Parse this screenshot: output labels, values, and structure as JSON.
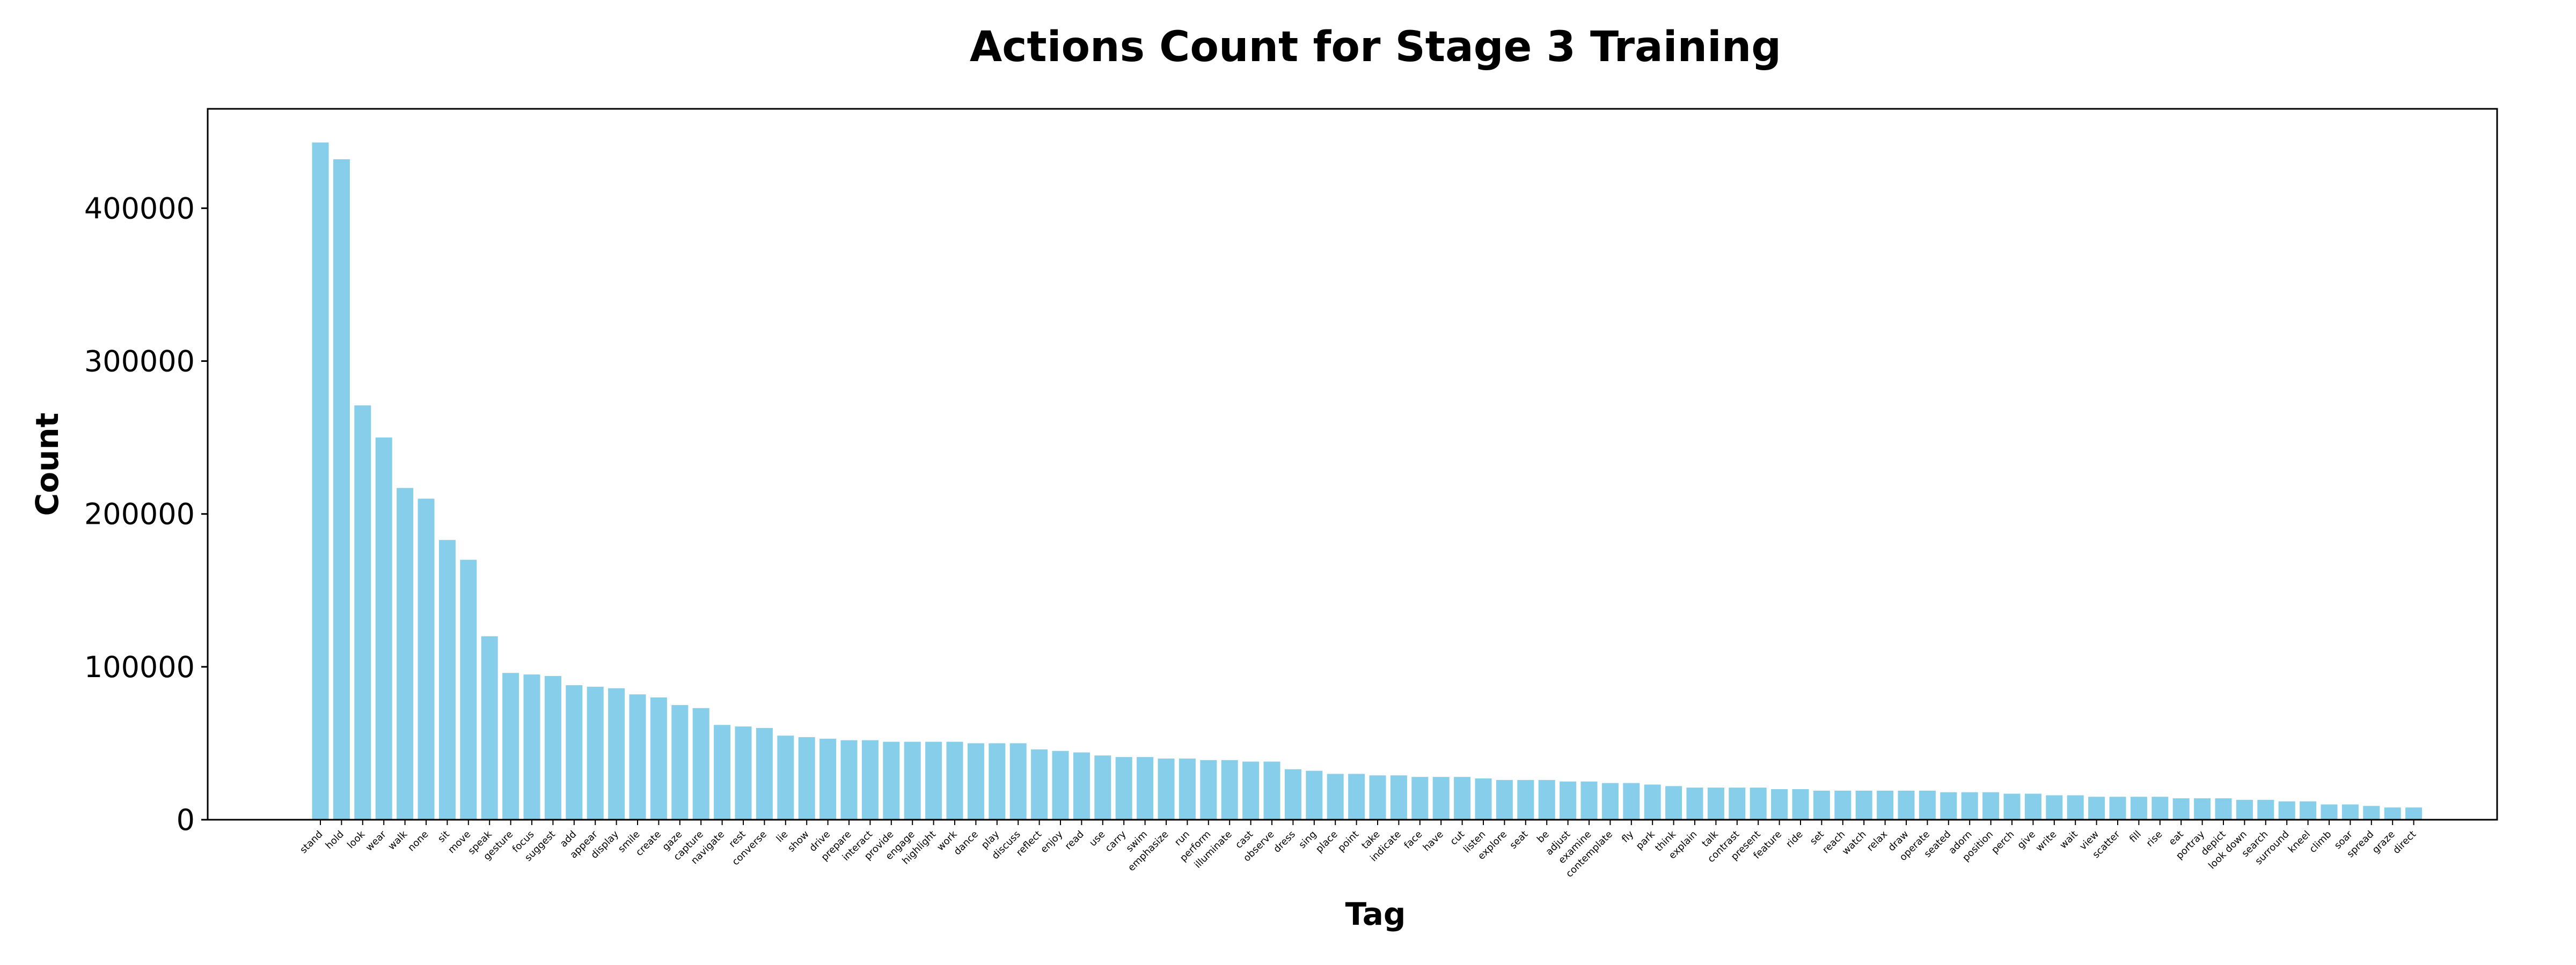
{
  "chart_data": {
    "type": "bar",
    "title": "Actions Count for Stage 3 Training",
    "xlabel": "Tag",
    "ylabel": "Count",
    "ylim": [
      0,
      465000
    ],
    "yticks": [
      0,
      100000,
      200000,
      300000,
      400000
    ],
    "grid": false,
    "bar_color": "#87ceeb",
    "categories": [
      "stand",
      "hold",
      "look",
      "wear",
      "walk",
      "none",
      "sit",
      "move",
      "speak",
      "gesture",
      "focus",
      "suggest",
      "add",
      "appear",
      "display",
      "smile",
      "create",
      "gaze",
      "capture",
      "navigate",
      "rest",
      "converse",
      "lie",
      "show",
      "drive",
      "prepare",
      "interact",
      "provide",
      "engage",
      "highlight",
      "work",
      "dance",
      "play",
      "discuss",
      "reflect",
      "enjoy",
      "read",
      "use",
      "carry",
      "swim",
      "emphasize",
      "run",
      "perform",
      "illuminate",
      "cast",
      "observe",
      "dress",
      "sing",
      "place",
      "point",
      "take",
      "indicate",
      "face",
      "have",
      "cut",
      "listen",
      "explore",
      "seat",
      "be",
      "adjust",
      "examine",
      "contemplate",
      "fly",
      "park",
      "think",
      "explain",
      "talk",
      "contrast",
      "present",
      "feature",
      "ride",
      "set",
      "reach",
      "watch",
      "relax",
      "draw",
      "operate",
      "seated",
      "adorn",
      "position",
      "perch",
      "give",
      "write",
      "wait",
      "view",
      "scatter",
      "fill",
      "rise",
      "eat",
      "portray",
      "depict",
      "look down",
      "search",
      "surround",
      "kneel",
      "climb",
      "soar",
      "spread",
      "graze",
      "direct"
    ],
    "values": [
      443000,
      432000,
      271000,
      250000,
      217000,
      210000,
      183000,
      170000,
      120000,
      96000,
      95000,
      94000,
      88000,
      87000,
      86000,
      82000,
      80000,
      75000,
      73000,
      62000,
      61000,
      60000,
      55000,
      54000,
      53000,
      52000,
      52000,
      51000,
      51000,
      51000,
      51000,
      50000,
      50000,
      50000,
      46000,
      45000,
      44000,
      42000,
      41000,
      41000,
      40000,
      40000,
      39000,
      39000,
      38000,
      38000,
      33000,
      32000,
      30000,
      30000,
      29000,
      29000,
      28000,
      28000,
      28000,
      27000,
      26000,
      26000,
      26000,
      25000,
      25000,
      24000,
      24000,
      23000,
      22000,
      21000,
      21000,
      21000,
      21000,
      20000,
      20000,
      19000,
      19000,
      19000,
      19000,
      19000,
      19000,
      18000,
      18000,
      18000,
      17000,
      17000,
      16000,
      16000,
      15000,
      15000,
      15000,
      15000,
      14000,
      14000,
      14000,
      13000,
      13000,
      12000,
      12000,
      10000,
      10000,
      9000,
      8000,
      8000
    ]
  }
}
